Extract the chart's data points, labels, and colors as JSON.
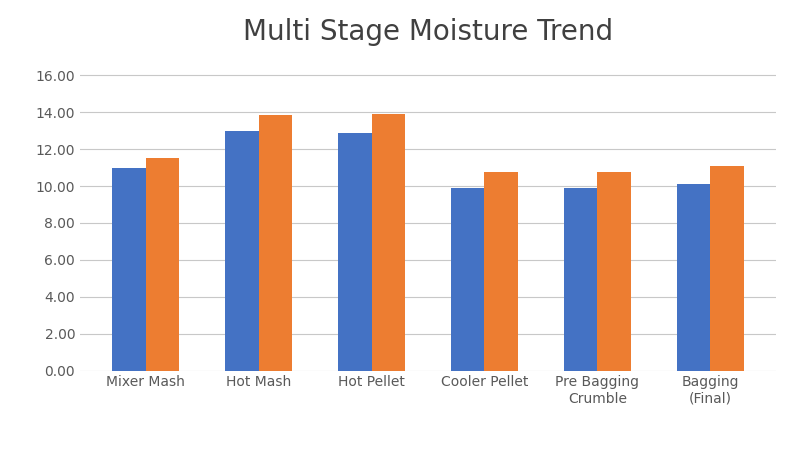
{
  "title": "Multi Stage Moisture Trend",
  "categories": [
    "Mixer Mash",
    "Hot Mash",
    "Hot Pellet",
    "Cooler Pellet",
    "Pre Bagging\nCrumble",
    "Bagging\n(Final)"
  ],
  "series": {
    "Control": [
      11.0,
      13.0,
      12.9,
      9.9,
      9.9,
      10.1
    ],
    "Fylax Forte": [
      11.5,
      13.85,
      13.9,
      10.75,
      10.75,
      11.1
    ]
  },
  "bar_colors": {
    "Control": "#4472C4",
    "Fylax Forte": "#ED7D31"
  },
  "ylim": [
    0,
    17.0
  ],
  "yticks": [
    0.0,
    2.0,
    4.0,
    6.0,
    8.0,
    10.0,
    12.0,
    14.0,
    16.0
  ],
  "ytick_labels": [
    "0.00",
    "2.00",
    "4.00",
    "6.00",
    "8.00",
    "10.00",
    "12.00",
    "14.00",
    "16.00"
  ],
  "bar_width": 0.3,
  "title_fontsize": 20,
  "tick_fontsize": 10,
  "legend_fontsize": 11,
  "background_color": "#ffffff",
  "grid_color": "#c8c8c8",
  "title_color": "#404040",
  "tick_color": "#595959"
}
